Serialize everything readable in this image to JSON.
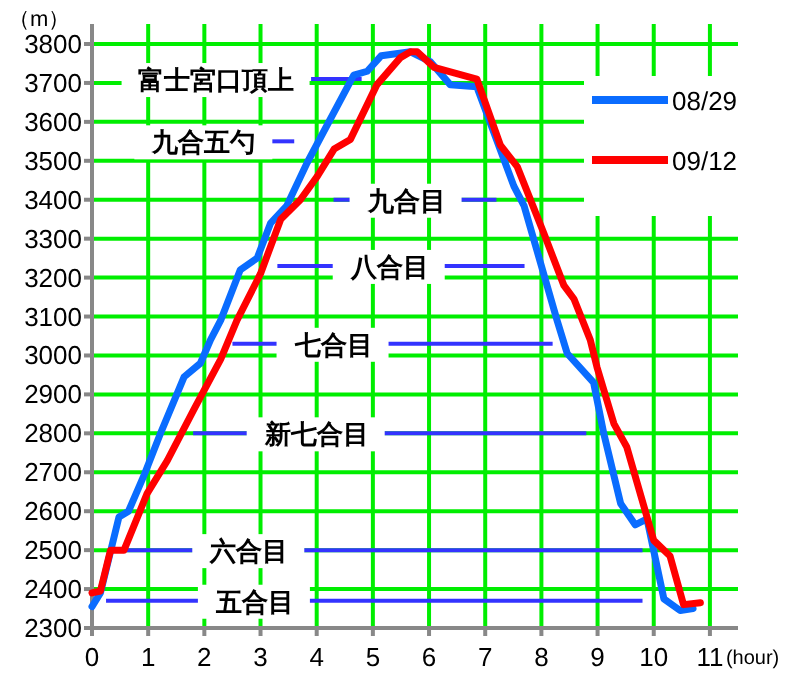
{
  "chart_data": {
    "type": "line",
    "ylabel": "（m）",
    "xlabel": "(hour)",
    "xlim": [
      0,
      11.5
    ],
    "xticks": [
      0,
      1,
      2,
      3,
      4,
      5,
      6,
      7,
      8,
      9,
      10,
      11
    ],
    "ylim": [
      2300,
      3800
    ],
    "yticks": [
      2300,
      2400,
      2500,
      2600,
      2700,
      2800,
      2900,
      3000,
      3100,
      3200,
      3300,
      3400,
      3500,
      3600,
      3700,
      3800
    ],
    "grid": true,
    "legend": "top right",
    "marker": "none",
    "line_style": "solid",
    "series": [
      {
        "name": "08/29",
        "color": "#0a6cff",
        "x": [
          0,
          0.15,
          0.48,
          0.65,
          0.92,
          1.22,
          1.64,
          1.93,
          2.11,
          2.29,
          2.64,
          2.94,
          3.18,
          3.47,
          3.83,
          4.18,
          4.66,
          4.9,
          5.15,
          5.67,
          6.02,
          6.38,
          6.85,
          7.51,
          7.69,
          8.28,
          8.46,
          8.93,
          9.11,
          9.41,
          9.67,
          9.88,
          10.18,
          10.47,
          10.7
        ],
        "values": [
          2355,
          2390,
          2585,
          2600,
          2690,
          2800,
          2945,
          2980,
          3040,
          3090,
          3220,
          3250,
          3340,
          3385,
          3495,
          3590,
          3720,
          3730,
          3770,
          3780,
          3755,
          3695,
          3690,
          3435,
          3385,
          3090,
          3005,
          2930,
          2800,
          2620,
          2565,
          2580,
          2375,
          2345,
          2350
        ]
      },
      {
        "name": "09/12",
        "color": "#ff0000",
        "x": [
          0,
          0.15,
          0.33,
          0.57,
          0.98,
          1.34,
          1.81,
          2.29,
          2.58,
          3.0,
          3.36,
          3.71,
          4.01,
          4.31,
          4.6,
          5.07,
          5.49,
          5.67,
          5.79,
          6.09,
          6.85,
          7.27,
          7.57,
          8.04,
          8.4,
          8.58,
          8.87,
          8.99,
          9.29,
          9.52,
          10.0,
          10.29,
          10.53,
          10.83
        ],
        "values": [
          2390,
          2395,
          2500,
          2500,
          2645,
          2730,
          2860,
          2990,
          3090,
          3210,
          3350,
          3400,
          3460,
          3530,
          3555,
          3695,
          3765,
          3780,
          3780,
          3740,
          3710,
          3540,
          3485,
          3315,
          3180,
          3145,
          3040,
          2970,
          2825,
          2765,
          2525,
          2485,
          2360,
          2365
        ]
      }
    ],
    "ref_lines": [
      {
        "axis": "y",
        "value": 3710,
        "label": "富士宮口頂上",
        "color": "#3333ff"
      },
      {
        "axis": "y",
        "value": 3550,
        "label": "九合五勺",
        "color": "#3333ff"
      },
      {
        "axis": "y",
        "value": 3400,
        "label": "九合目",
        "color": "#3333ff"
      },
      {
        "axis": "y",
        "value": 3230,
        "label": "八合目",
        "color": "#3333ff"
      },
      {
        "axis": "y",
        "value": 3030,
        "label": "七合目",
        "color": "#3333ff"
      },
      {
        "axis": "y",
        "value": 2800,
        "label": "新七合目",
        "color": "#3333ff"
      },
      {
        "axis": "y",
        "value": 2500,
        "label": "六合目",
        "color": "#3333ff"
      },
      {
        "axis": "y",
        "value": 2370,
        "label": "五合目",
        "color": "#3333ff"
      }
    ]
  }
}
